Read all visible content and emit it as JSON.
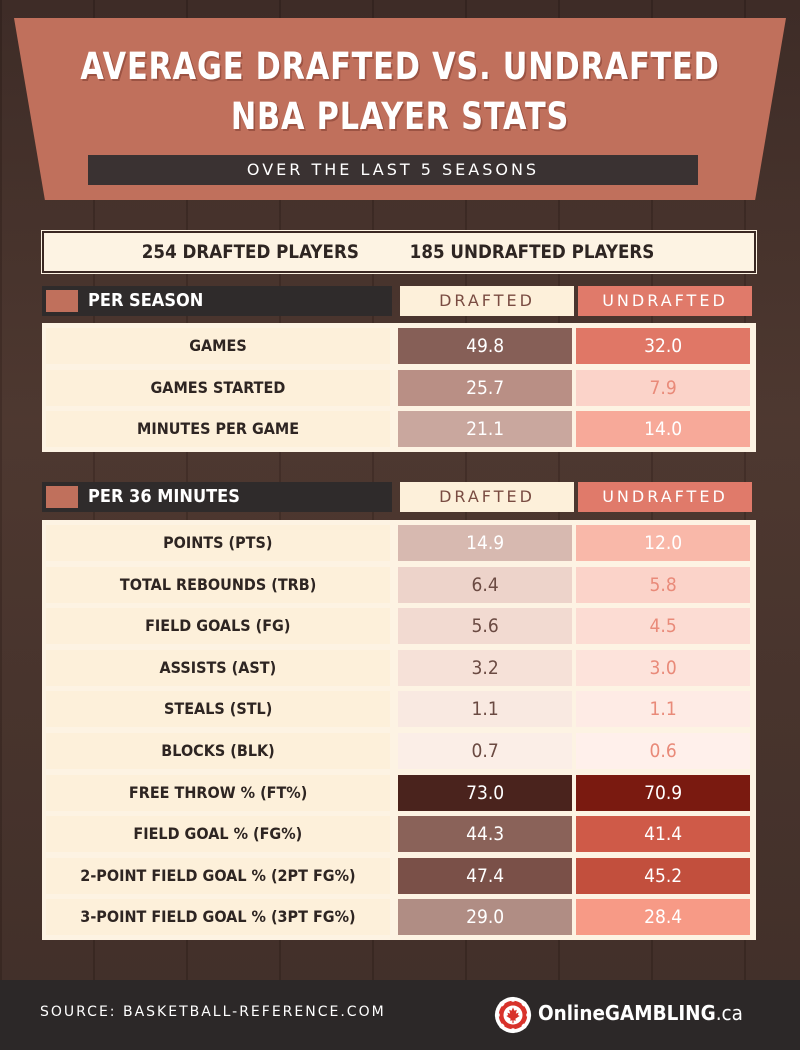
{
  "header": {
    "title_line1": "AVERAGE DRAFTED VS. UNDRAFTED",
    "title_line2": "NBA PLAYER STATS",
    "subtitle": "OVER THE LAST 5 SEASONS"
  },
  "counts": {
    "drafted": "254 DRAFTED PLAYERS",
    "undrafted": "185 UNDRAFTED PLAYERS"
  },
  "colors": {
    "accent": "#c0705c",
    "drafted_header": "#fdf0da",
    "undrafted_header": "#e07a6a",
    "dark": "#2f2b2b"
  },
  "chart_data": {
    "type": "table",
    "columns": [
      "DRAFTED",
      "UNDRAFTED"
    ],
    "sections": [
      {
        "title": "PER SEASON",
        "rows": [
          {
            "label": "GAMES",
            "drafted": "49.8",
            "undrafted": "32.0",
            "drafted_bg": "#865f57",
            "drafted_fg": "#ffffff",
            "undrafted_bg": "#e07766",
            "undrafted_fg": "#ffffff"
          },
          {
            "label": "GAMES STARTED",
            "drafted": "25.7",
            "undrafted": "7.9",
            "drafted_bg": "#b98f85",
            "drafted_fg": "#ffffff",
            "undrafted_bg": "#fbd3c9",
            "undrafted_fg": "#e98a79"
          },
          {
            "label": "MINUTES PER GAME",
            "drafted": "21.1",
            "undrafted": "14.0",
            "drafted_bg": "#c9a79e",
            "drafted_fg": "#ffffff",
            "undrafted_bg": "#f7a999",
            "undrafted_fg": "#ffffff"
          }
        ]
      },
      {
        "title": "PER 36 MINUTES",
        "rows": [
          {
            "label": "POINTS (PTS)",
            "drafted": "14.9",
            "undrafted": "12.0",
            "drafted_bg": "#d7b9b0",
            "drafted_fg": "#ffffff",
            "undrafted_bg": "#f9b8a9",
            "undrafted_fg": "#ffffff"
          },
          {
            "label": "TOTAL REBOUNDS (TRB)",
            "drafted": "6.4",
            "undrafted": "5.8",
            "drafted_bg": "#edd3ca",
            "drafted_fg": "#6b4a42",
            "undrafted_bg": "#fbd3c9",
            "undrafted_fg": "#e98a79"
          },
          {
            "label": "FIELD GOALS (FG)",
            "drafted": "5.6",
            "undrafted": "4.5",
            "drafted_bg": "#f2dad1",
            "drafted_fg": "#6b4a42",
            "undrafted_bg": "#fcdcd3",
            "undrafted_fg": "#e98a79"
          },
          {
            "label": "ASSISTS (AST)",
            "drafted": "3.2",
            "undrafted": "3.0",
            "drafted_bg": "#f6e1d8",
            "drafted_fg": "#6b4a42",
            "undrafted_bg": "#fde3db",
            "undrafted_fg": "#e98a79"
          },
          {
            "label": "STEALS (STL)",
            "drafted": "1.1",
            "undrafted": "1.1",
            "drafted_bg": "#f9e9e1",
            "drafted_fg": "#6b4a42",
            "undrafted_bg": "#feebe5",
            "undrafted_fg": "#e98a79"
          },
          {
            "label": "BLOCKS (BLK)",
            "drafted": "0.7",
            "undrafted": "0.6",
            "drafted_bg": "#fbeee7",
            "drafted_fg": "#6b4a42",
            "undrafted_bg": "#fff0eb",
            "undrafted_fg": "#e98a79"
          },
          {
            "label": "FREE THROW % (FT%)",
            "drafted": "73.0",
            "undrafted": "70.9",
            "drafted_bg": "#4a231d",
            "drafted_fg": "#ffffff",
            "undrafted_bg": "#7a1a10",
            "undrafted_fg": "#ffffff"
          },
          {
            "label": "FIELD GOAL % (FG%)",
            "drafted": "44.3",
            "undrafted": "41.4",
            "drafted_bg": "#8a6259",
            "drafted_fg": "#ffffff",
            "undrafted_bg": "#cf5a48",
            "undrafted_fg": "#ffffff"
          },
          {
            "label": "2-POINT FIELD GOAL % (2PT FG%)",
            "drafted": "47.4",
            "undrafted": "45.2",
            "drafted_bg": "#7a5048",
            "drafted_fg": "#ffffff",
            "undrafted_bg": "#c24f3d",
            "undrafted_fg": "#ffffff"
          },
          {
            "label": "3-POINT FIELD GOAL % (3PT FG%)",
            "drafted": "29.0",
            "undrafted": "28.4",
            "drafted_bg": "#b08d84",
            "drafted_fg": "#ffffff",
            "undrafted_bg": "#f79a86",
            "undrafted_fg": "#ffffff"
          }
        ]
      }
    ]
  },
  "footer": {
    "source": "SOURCE: BASKETBALL-REFERENCE.COM",
    "brand_main": "OnlineGAMBLING",
    "brand_tld": ".ca",
    "brand_icon": "poker-chip-maple-leaf-icon"
  }
}
